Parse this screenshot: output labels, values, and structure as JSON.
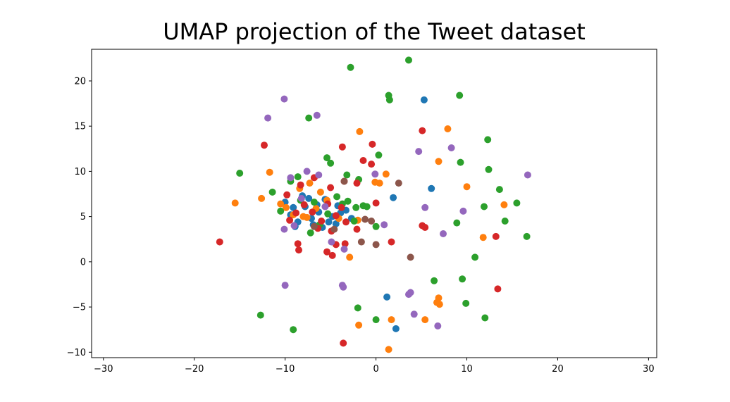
{
  "chart_data": {
    "type": "scatter",
    "title": "UMAP projection of the Tweet dataset",
    "xlabel": "",
    "ylabel": "",
    "xlim": [
      -31.3,
      30.9
    ],
    "ylim": [
      -10.6,
      23.5
    ],
    "xticks": [
      -30,
      -20,
      -10,
      0,
      10,
      20,
      30
    ],
    "xtick_labels": [
      "−30",
      "−20",
      "−10",
      "0",
      "10",
      "20",
      "30"
    ],
    "yticks": [
      -10,
      -5,
      0,
      5,
      10,
      15,
      20
    ],
    "ytick_labels": [
      "−10",
      "−5",
      "0",
      "5",
      "10",
      "15",
      "20"
    ],
    "grid": false,
    "legend": "none",
    "series": [
      {
        "color": "#1f77b4",
        "points": [
          [
            5.3,
            17.9
          ],
          [
            1.9,
            7.1
          ],
          [
            6.1,
            8.1
          ],
          [
            1.2,
            -3.9
          ],
          [
            2.2,
            -7.4
          ],
          [
            -10.0,
            6.6
          ],
          [
            -9.4,
            5.2
          ],
          [
            -8.6,
            4.4
          ],
          [
            -7.8,
            6.1
          ],
          [
            -7.1,
            4.8
          ],
          [
            -6.3,
            5.5
          ],
          [
            -5.6,
            6.9
          ],
          [
            -4.8,
            5.0
          ],
          [
            -3.9,
            5.4
          ],
          [
            -8.1,
            7.3
          ],
          [
            -6.9,
            4.1
          ],
          [
            -5.9,
            3.8
          ],
          [
            -4.4,
            4.2
          ],
          [
            -9.1,
            6.0
          ],
          [
            -7.4,
            7.0
          ],
          [
            -6.5,
            6.3
          ],
          [
            -4.2,
            6.2
          ],
          [
            -3.3,
            5.7
          ],
          [
            -5.2,
            4.4
          ],
          [
            -8.9,
            3.9
          ],
          [
            -2.7,
            4.8
          ]
        ]
      },
      {
        "color": "#ff7f0e",
        "points": [
          [
            -11.7,
            9.9
          ],
          [
            -12.6,
            7.0
          ],
          [
            -15.5,
            6.5
          ],
          [
            -1.8,
            14.4
          ],
          [
            7.9,
            14.7
          ],
          [
            1.1,
            9.7
          ],
          [
            -0.1,
            8.8
          ],
          [
            0.4,
            8.7
          ],
          [
            6.9,
            11.1
          ],
          [
            10.0,
            8.3
          ],
          [
            14.1,
            6.3
          ],
          [
            11.8,
            2.7
          ],
          [
            -2.9,
            0.5
          ],
          [
            6.9,
            -4.0
          ],
          [
            7.0,
            -4.7
          ],
          [
            6.7,
            -4.5
          ],
          [
            5.4,
            -6.4
          ],
          [
            -1.9,
            -7.0
          ],
          [
            1.7,
            -6.4
          ],
          [
            1.4,
            -9.7
          ],
          [
            -9.9,
            6.0
          ],
          [
            -9.1,
            5.2
          ],
          [
            -7.6,
            4.9
          ],
          [
            -6.6,
            5.9
          ],
          [
            -5.4,
            6.8
          ],
          [
            -7.3,
            8.7
          ],
          [
            -8.4,
            8.1
          ],
          [
            -4.1,
            4.8
          ],
          [
            -2.0,
            4.6
          ],
          [
            -10.5,
            6.4
          ],
          [
            -6.1,
            7.7
          ],
          [
            -8.0,
            5.0
          ]
        ]
      },
      {
        "color": "#2ca02c",
        "points": [
          [
            3.6,
            22.3
          ],
          [
            -2.8,
            21.5
          ],
          [
            1.4,
            18.4
          ],
          [
            1.5,
            17.9
          ],
          [
            9.2,
            18.4
          ],
          [
            -7.4,
            15.9
          ],
          [
            12.3,
            13.5
          ],
          [
            0.3,
            11.8
          ],
          [
            -5.4,
            11.5
          ],
          [
            -5.0,
            10.9
          ],
          [
            9.3,
            11.0
          ],
          [
            12.4,
            10.2
          ],
          [
            -15.0,
            9.8
          ],
          [
            -3.2,
            9.6
          ],
          [
            -1.9,
            9.1
          ],
          [
            13.6,
            8.0
          ],
          [
            11.9,
            6.1
          ],
          [
            15.5,
            6.5
          ],
          [
            14.2,
            4.5
          ],
          [
            8.9,
            4.3
          ],
          [
            16.6,
            2.8
          ],
          [
            10.9,
            0.5
          ],
          [
            6.4,
            -2.1
          ],
          [
            9.5,
            -1.9
          ],
          [
            9.9,
            -4.6
          ],
          [
            -2.0,
            -5.1
          ],
          [
            0.0,
            -6.4
          ],
          [
            12.0,
            -6.2
          ],
          [
            -12.7,
            -5.9
          ],
          [
            -9.1,
            -7.5
          ],
          [
            -1.4,
            6.2
          ],
          [
            -1.0,
            6.1
          ],
          [
            -11.4,
            7.7
          ],
          [
            -9.4,
            8.9
          ],
          [
            -8.3,
            6.8
          ],
          [
            -7.2,
            3.2
          ],
          [
            -6.2,
            4.1
          ],
          [
            -5.3,
            5.3
          ],
          [
            -4.3,
            7.2
          ],
          [
            -3.1,
            6.7
          ],
          [
            -2.4,
            4.5
          ],
          [
            -10.5,
            5.6
          ],
          [
            -8.6,
            9.4
          ],
          [
            -6.8,
            6.6
          ],
          [
            -3.7,
            6.4
          ],
          [
            -2.2,
            6.0
          ],
          [
            0.0,
            3.9
          ]
        ]
      },
      {
        "color": "#d62728",
        "points": [
          [
            -12.3,
            12.9
          ],
          [
            5.1,
            14.5
          ],
          [
            -0.4,
            13.0
          ],
          [
            -3.7,
            12.7
          ],
          [
            -1.4,
            11.2
          ],
          [
            -0.5,
            10.8
          ],
          [
            -3.5,
            8.9
          ],
          [
            0.0,
            6.5
          ],
          [
            5.1,
            4.0
          ],
          [
            5.4,
            3.8
          ],
          [
            13.2,
            2.8
          ],
          [
            -17.2,
            2.2
          ],
          [
            -8.6,
            2.0
          ],
          [
            -8.5,
            1.3
          ],
          [
            -5.4,
            1.1
          ],
          [
            -4.8,
            0.7
          ],
          [
            1.7,
            2.2
          ],
          [
            -3.4,
            2.0
          ],
          [
            -4.4,
            1.9
          ],
          [
            -2.1,
            3.6
          ],
          [
            13.4,
            -3.0
          ],
          [
            -3.6,
            -9.0
          ],
          [
            -8.8,
            5.4
          ],
          [
            -7.9,
            6.3
          ],
          [
            -7.0,
            5.5
          ],
          [
            -6.0,
            4.5
          ],
          [
            -5.3,
            6.4
          ],
          [
            -4.4,
            5.1
          ],
          [
            -8.3,
            8.5
          ],
          [
            -6.8,
            9.3
          ],
          [
            -5.0,
            8.2
          ],
          [
            -3.8,
            6.0
          ],
          [
            -2.1,
            8.7
          ],
          [
            -9.5,
            4.6
          ],
          [
            -6.4,
            3.7
          ],
          [
            -4.9,
            3.4
          ],
          [
            -3.3,
            4.4
          ],
          [
            -9.8,
            7.4
          ]
        ]
      },
      {
        "color": "#9467bd",
        "points": [
          [
            -10.1,
            18.0
          ],
          [
            -11.9,
            15.9
          ],
          [
            -6.5,
            16.2
          ],
          [
            4.7,
            12.2
          ],
          [
            8.3,
            12.6
          ],
          [
            16.7,
            9.6
          ],
          [
            5.4,
            6.0
          ],
          [
            9.6,
            5.6
          ],
          [
            7.4,
            3.1
          ],
          [
            0.9,
            4.1
          ],
          [
            -4.9,
            2.2
          ],
          [
            -3.5,
            1.4
          ],
          [
            3.6,
            -3.6
          ],
          [
            3.8,
            -3.4
          ],
          [
            -10.0,
            -2.6
          ],
          [
            -3.7,
            -2.6
          ],
          [
            -3.6,
            -2.8
          ],
          [
            4.2,
            -5.8
          ],
          [
            6.8,
            -7.1
          ],
          [
            -0.1,
            9.7
          ],
          [
            -9.4,
            9.3
          ],
          [
            -7.6,
            10.0
          ],
          [
            -6.3,
            9.6
          ],
          [
            -9.0,
            4.0
          ],
          [
            -10.1,
            3.6
          ],
          [
            -8.2,
            7.0
          ],
          [
            -5.6,
            6.1
          ]
        ]
      },
      {
        "color": "#8c564b",
        "points": [
          [
            2.5,
            8.7
          ],
          [
            -3.5,
            8.9
          ],
          [
            -1.2,
            4.7
          ],
          [
            -0.5,
            4.5
          ],
          [
            0.0,
            1.9
          ],
          [
            3.8,
            0.5
          ],
          [
            -6.8,
            3.9
          ],
          [
            -4.6,
            3.6
          ],
          [
            -1.6,
            2.2
          ]
        ]
      }
    ]
  }
}
